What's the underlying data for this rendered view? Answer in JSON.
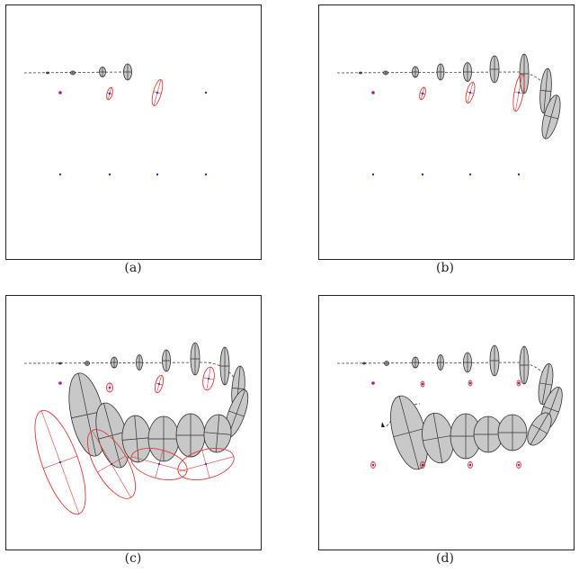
{
  "panels": [
    {
      "id": "a",
      "caption": "(a)"
    },
    {
      "id": "b",
      "caption": "(b)"
    },
    {
      "id": "c",
      "caption": "(c)"
    },
    {
      "id": "d",
      "caption": "(d)"
    }
  ],
  "colors": {
    "ellipse_fill": "#c8c8c8",
    "ellipse_stroke": "#303030",
    "uncertainty": "#e23a3a",
    "landmark": "#2a2ae0",
    "trajectory": "#444444",
    "frame": "#222222"
  }
}
